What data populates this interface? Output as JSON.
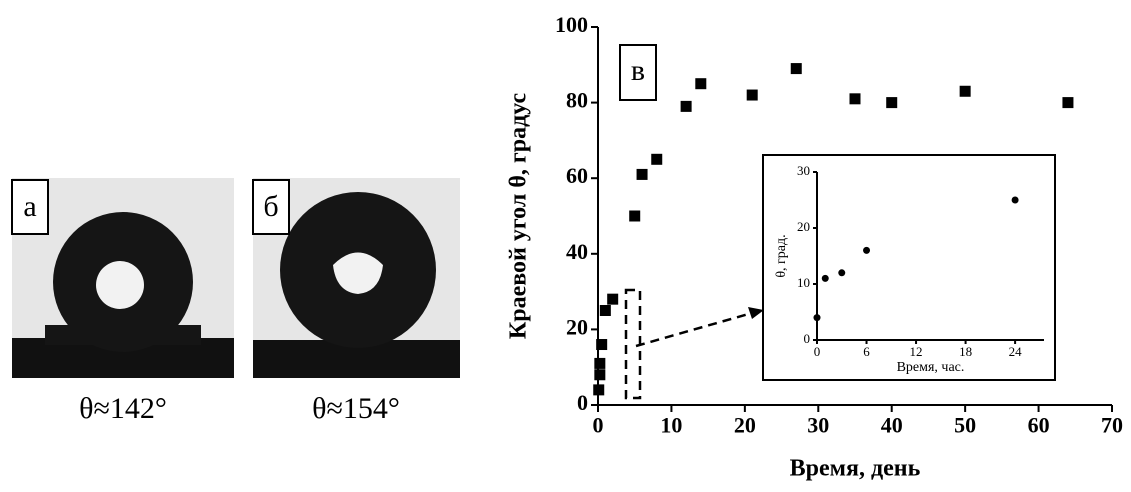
{
  "panels": [
    {
      "label": "а",
      "caption": "θ≈142°"
    },
    {
      "label": "б",
      "caption": "θ≈154°"
    }
  ],
  "chart_data": [
    {
      "type": "scatter",
      "label": "в",
      "marker": "square",
      "color": "#000000",
      "xlabel": "Время, день",
      "ylabel": "Краевой угол θ, градус",
      "x": [
        0.1,
        0.25,
        0.25,
        0.5,
        1,
        2,
        5,
        6,
        8,
        12,
        14,
        21,
        27,
        35,
        40,
        50,
        64
      ],
      "values": [
        4,
        8,
        11,
        16,
        25,
        28,
        50,
        61,
        65,
        79,
        85,
        82,
        89,
        81,
        80,
        83,
        80
      ],
      "xlim": [
        0,
        70
      ],
      "ylim": [
        0,
        100
      ],
      "xticks": [
        0,
        10,
        20,
        30,
        40,
        50,
        60,
        70
      ],
      "yticks": [
        0,
        20,
        40,
        60,
        80,
        100
      ]
    },
    {
      "type": "scatter",
      "marker": "circle",
      "color": "#000000",
      "xlabel": "Время, час.",
      "ylabel": "θ, град.",
      "x": [
        0,
        1,
        3,
        6,
        24
      ],
      "values": [
        4,
        11,
        12,
        16,
        25
      ],
      "xlim": [
        0,
        27.5
      ],
      "ylim": [
        0,
        30
      ],
      "xticks": [
        0,
        6,
        12,
        18,
        24
      ],
      "yticks": [
        0,
        10,
        20,
        30
      ]
    }
  ]
}
